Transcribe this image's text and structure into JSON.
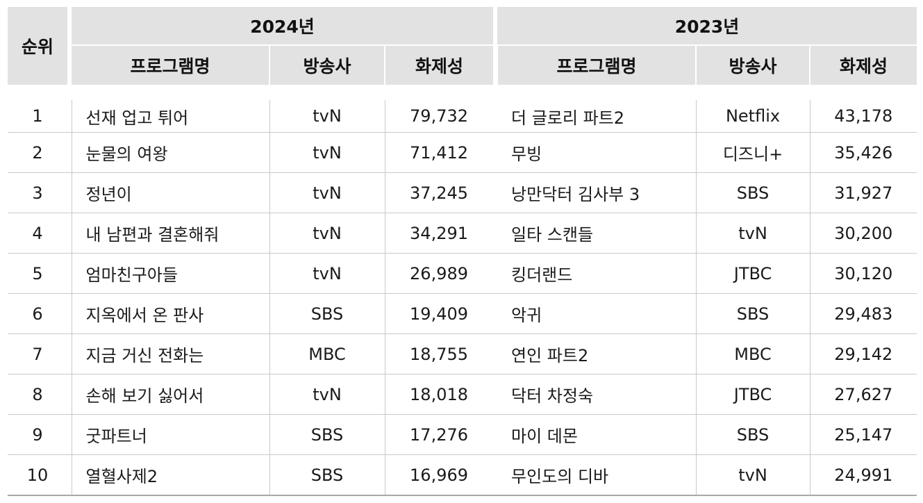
{
  "header": {
    "rank": "순위",
    "year_2024": "2024년",
    "year_2023": "2023년",
    "program": "프로그램명",
    "broadcaster": "방송사",
    "buzz": "화제성"
  },
  "rows": [
    {
      "rank": "1",
      "p24": "선재 업고 튀어",
      "b24": "tvN",
      "v24": "79,732",
      "p23": "더 글로리 파트2",
      "b23": "Netflix",
      "v23": "43,178"
    },
    {
      "rank": "2",
      "p24": "눈물의 여왕",
      "b24": "tvN",
      "v24": "71,412",
      "p23": "무빙",
      "b23": "디즈니+",
      "v23": "35,426"
    },
    {
      "rank": "3",
      "p24": "정년이",
      "b24": "tvN",
      "v24": "37,245",
      "p23": "낭만닥터 김사부 3",
      "b23": "SBS",
      "v23": "31,927"
    },
    {
      "rank": "4",
      "p24": "내 남편과 결혼해줘",
      "b24": "tvN",
      "v24": "34,291",
      "p23": "일타 스캔들",
      "b23": "tvN",
      "v23": "30,200"
    },
    {
      "rank": "5",
      "p24": "엄마친구아들",
      "b24": "tvN",
      "v24": "26,989",
      "p23": "킹더랜드",
      "b23": "JTBC",
      "v23": "30,120"
    },
    {
      "rank": "6",
      "p24": "지옥에서 온 판사",
      "b24": "SBS",
      "v24": "19,409",
      "p23": "악귀",
      "b23": "SBS",
      "v23": "29,483"
    },
    {
      "rank": "7",
      "p24": "지금 거신 전화는",
      "b24": "MBC",
      "v24": "18,755",
      "p23": "연인 파트2",
      "b23": "MBC",
      "v23": "29,142"
    },
    {
      "rank": "8",
      "p24": "손해 보기 싫어서",
      "b24": "tvN",
      "v24": "18,018",
      "p23": "닥터 차정숙",
      "b23": "JTBC",
      "v23": "27,627"
    },
    {
      "rank": "9",
      "p24": "굿파트너",
      "b24": "SBS",
      "v24": "17,276",
      "p23": "마이 데몬",
      "b23": "SBS",
      "v23": "25,147"
    },
    {
      "rank": "10",
      "p24": "열혈사제2",
      "b24": "SBS",
      "v24": "16,969",
      "p23": "무인도의 디바",
      "b23": "tvN",
      "v23": "24,991"
    }
  ]
}
